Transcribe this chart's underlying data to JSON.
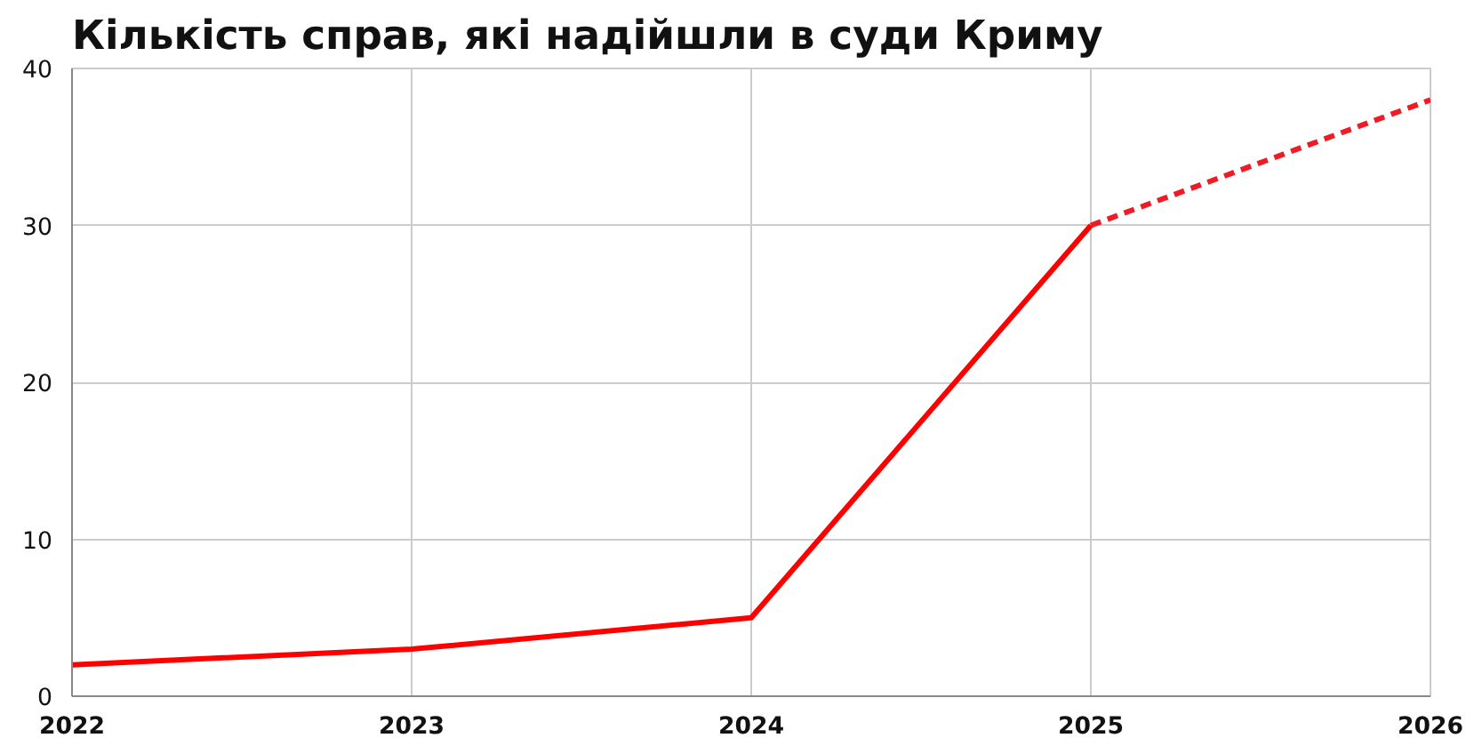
{
  "chart_data": {
    "type": "line",
    "title": "Кількість справ, які надійшли в суди Криму",
    "xlim": [
      2022,
      2026
    ],
    "xticks": [
      2022,
      2023,
      2024,
      2025,
      2026
    ],
    "ylim": [
      0,
      40
    ],
    "yticks": [
      0,
      10,
      20,
      30,
      40
    ],
    "grid": true,
    "series": [
      {
        "color": "#ff0000",
        "line_style": "solid",
        "x": [
          2022,
          2023,
          2024,
          2025
        ],
        "values": [
          2,
          3,
          5,
          30
        ]
      },
      {
        "color": "#ee1c25",
        "line_style": "dashed",
        "x": [
          2025,
          2026
        ],
        "values": [
          30,
          38
        ]
      }
    ]
  }
}
